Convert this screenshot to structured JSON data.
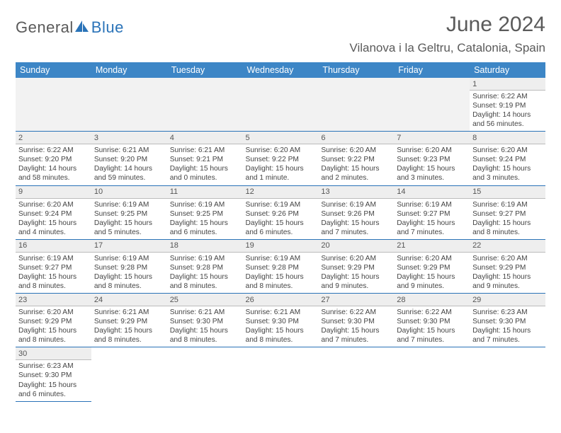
{
  "logo": {
    "part1": "General",
    "part2": "Blue"
  },
  "title": "June 2024",
  "location": "Vilanova i la Geltru, Catalonia, Spain",
  "colors": {
    "header_bg": "#3d86c6",
    "header_text": "#ffffff",
    "rule": "#2a73b8",
    "daynum_bg": "#eeeeee",
    "blank_bg": "#f2f2f2",
    "body_text": "#444444",
    "title_text": "#5a5a5a",
    "logo_blue": "#2a73b8",
    "logo_gray": "#5a5a5a"
  },
  "weekdays": [
    "Sunday",
    "Monday",
    "Tuesday",
    "Wednesday",
    "Thursday",
    "Friday",
    "Saturday"
  ],
  "grid": [
    [
      {
        "blank": true
      },
      {
        "blank": true
      },
      {
        "blank": true
      },
      {
        "blank": true
      },
      {
        "blank": true
      },
      {
        "blank": true
      },
      {
        "n": "1",
        "sunrise": "Sunrise: 6:22 AM",
        "sunset": "Sunset: 9:19 PM",
        "day1": "Daylight: 14 hours",
        "day2": "and 56 minutes."
      }
    ],
    [
      {
        "n": "2",
        "sunrise": "Sunrise: 6:22 AM",
        "sunset": "Sunset: 9:20 PM",
        "day1": "Daylight: 14 hours",
        "day2": "and 58 minutes."
      },
      {
        "n": "3",
        "sunrise": "Sunrise: 6:21 AM",
        "sunset": "Sunset: 9:20 PM",
        "day1": "Daylight: 14 hours",
        "day2": "and 59 minutes."
      },
      {
        "n": "4",
        "sunrise": "Sunrise: 6:21 AM",
        "sunset": "Sunset: 9:21 PM",
        "day1": "Daylight: 15 hours",
        "day2": "and 0 minutes."
      },
      {
        "n": "5",
        "sunrise": "Sunrise: 6:20 AM",
        "sunset": "Sunset: 9:22 PM",
        "day1": "Daylight: 15 hours",
        "day2": "and 1 minute."
      },
      {
        "n": "6",
        "sunrise": "Sunrise: 6:20 AM",
        "sunset": "Sunset: 9:22 PM",
        "day1": "Daylight: 15 hours",
        "day2": "and 2 minutes."
      },
      {
        "n": "7",
        "sunrise": "Sunrise: 6:20 AM",
        "sunset": "Sunset: 9:23 PM",
        "day1": "Daylight: 15 hours",
        "day2": "and 3 minutes."
      },
      {
        "n": "8",
        "sunrise": "Sunrise: 6:20 AM",
        "sunset": "Sunset: 9:24 PM",
        "day1": "Daylight: 15 hours",
        "day2": "and 3 minutes."
      }
    ],
    [
      {
        "n": "9",
        "sunrise": "Sunrise: 6:20 AM",
        "sunset": "Sunset: 9:24 PM",
        "day1": "Daylight: 15 hours",
        "day2": "and 4 minutes."
      },
      {
        "n": "10",
        "sunrise": "Sunrise: 6:19 AM",
        "sunset": "Sunset: 9:25 PM",
        "day1": "Daylight: 15 hours",
        "day2": "and 5 minutes."
      },
      {
        "n": "11",
        "sunrise": "Sunrise: 6:19 AM",
        "sunset": "Sunset: 9:25 PM",
        "day1": "Daylight: 15 hours",
        "day2": "and 6 minutes."
      },
      {
        "n": "12",
        "sunrise": "Sunrise: 6:19 AM",
        "sunset": "Sunset: 9:26 PM",
        "day1": "Daylight: 15 hours",
        "day2": "and 6 minutes."
      },
      {
        "n": "13",
        "sunrise": "Sunrise: 6:19 AM",
        "sunset": "Sunset: 9:26 PM",
        "day1": "Daylight: 15 hours",
        "day2": "and 7 minutes."
      },
      {
        "n": "14",
        "sunrise": "Sunrise: 6:19 AM",
        "sunset": "Sunset: 9:27 PM",
        "day1": "Daylight: 15 hours",
        "day2": "and 7 minutes."
      },
      {
        "n": "15",
        "sunrise": "Sunrise: 6:19 AM",
        "sunset": "Sunset: 9:27 PM",
        "day1": "Daylight: 15 hours",
        "day2": "and 8 minutes."
      }
    ],
    [
      {
        "n": "16",
        "sunrise": "Sunrise: 6:19 AM",
        "sunset": "Sunset: 9:27 PM",
        "day1": "Daylight: 15 hours",
        "day2": "and 8 minutes."
      },
      {
        "n": "17",
        "sunrise": "Sunrise: 6:19 AM",
        "sunset": "Sunset: 9:28 PM",
        "day1": "Daylight: 15 hours",
        "day2": "and 8 minutes."
      },
      {
        "n": "18",
        "sunrise": "Sunrise: 6:19 AM",
        "sunset": "Sunset: 9:28 PM",
        "day1": "Daylight: 15 hours",
        "day2": "and 8 minutes."
      },
      {
        "n": "19",
        "sunrise": "Sunrise: 6:19 AM",
        "sunset": "Sunset: 9:28 PM",
        "day1": "Daylight: 15 hours",
        "day2": "and 8 minutes."
      },
      {
        "n": "20",
        "sunrise": "Sunrise: 6:20 AM",
        "sunset": "Sunset: 9:29 PM",
        "day1": "Daylight: 15 hours",
        "day2": "and 9 minutes."
      },
      {
        "n": "21",
        "sunrise": "Sunrise: 6:20 AM",
        "sunset": "Sunset: 9:29 PM",
        "day1": "Daylight: 15 hours",
        "day2": "and 9 minutes."
      },
      {
        "n": "22",
        "sunrise": "Sunrise: 6:20 AM",
        "sunset": "Sunset: 9:29 PM",
        "day1": "Daylight: 15 hours",
        "day2": "and 9 minutes."
      }
    ],
    [
      {
        "n": "23",
        "sunrise": "Sunrise: 6:20 AM",
        "sunset": "Sunset: 9:29 PM",
        "day1": "Daylight: 15 hours",
        "day2": "and 8 minutes."
      },
      {
        "n": "24",
        "sunrise": "Sunrise: 6:21 AM",
        "sunset": "Sunset: 9:29 PM",
        "day1": "Daylight: 15 hours",
        "day2": "and 8 minutes."
      },
      {
        "n": "25",
        "sunrise": "Sunrise: 6:21 AM",
        "sunset": "Sunset: 9:30 PM",
        "day1": "Daylight: 15 hours",
        "day2": "and 8 minutes."
      },
      {
        "n": "26",
        "sunrise": "Sunrise: 6:21 AM",
        "sunset": "Sunset: 9:30 PM",
        "day1": "Daylight: 15 hours",
        "day2": "and 8 minutes."
      },
      {
        "n": "27",
        "sunrise": "Sunrise: 6:22 AM",
        "sunset": "Sunset: 9:30 PM",
        "day1": "Daylight: 15 hours",
        "day2": "and 7 minutes."
      },
      {
        "n": "28",
        "sunrise": "Sunrise: 6:22 AM",
        "sunset": "Sunset: 9:30 PM",
        "day1": "Daylight: 15 hours",
        "day2": "and 7 minutes."
      },
      {
        "n": "29",
        "sunrise": "Sunrise: 6:23 AM",
        "sunset": "Sunset: 9:30 PM",
        "day1": "Daylight: 15 hours",
        "day2": "and 7 minutes."
      }
    ],
    [
      {
        "n": "30",
        "sunrise": "Sunrise: 6:23 AM",
        "sunset": "Sunset: 9:30 PM",
        "day1": "Daylight: 15 hours",
        "day2": "and 6 minutes."
      },
      {
        "blank": true
      },
      {
        "blank": true
      },
      {
        "blank": true
      },
      {
        "blank": true
      },
      {
        "blank": true
      },
      {
        "blank": true
      }
    ]
  ]
}
